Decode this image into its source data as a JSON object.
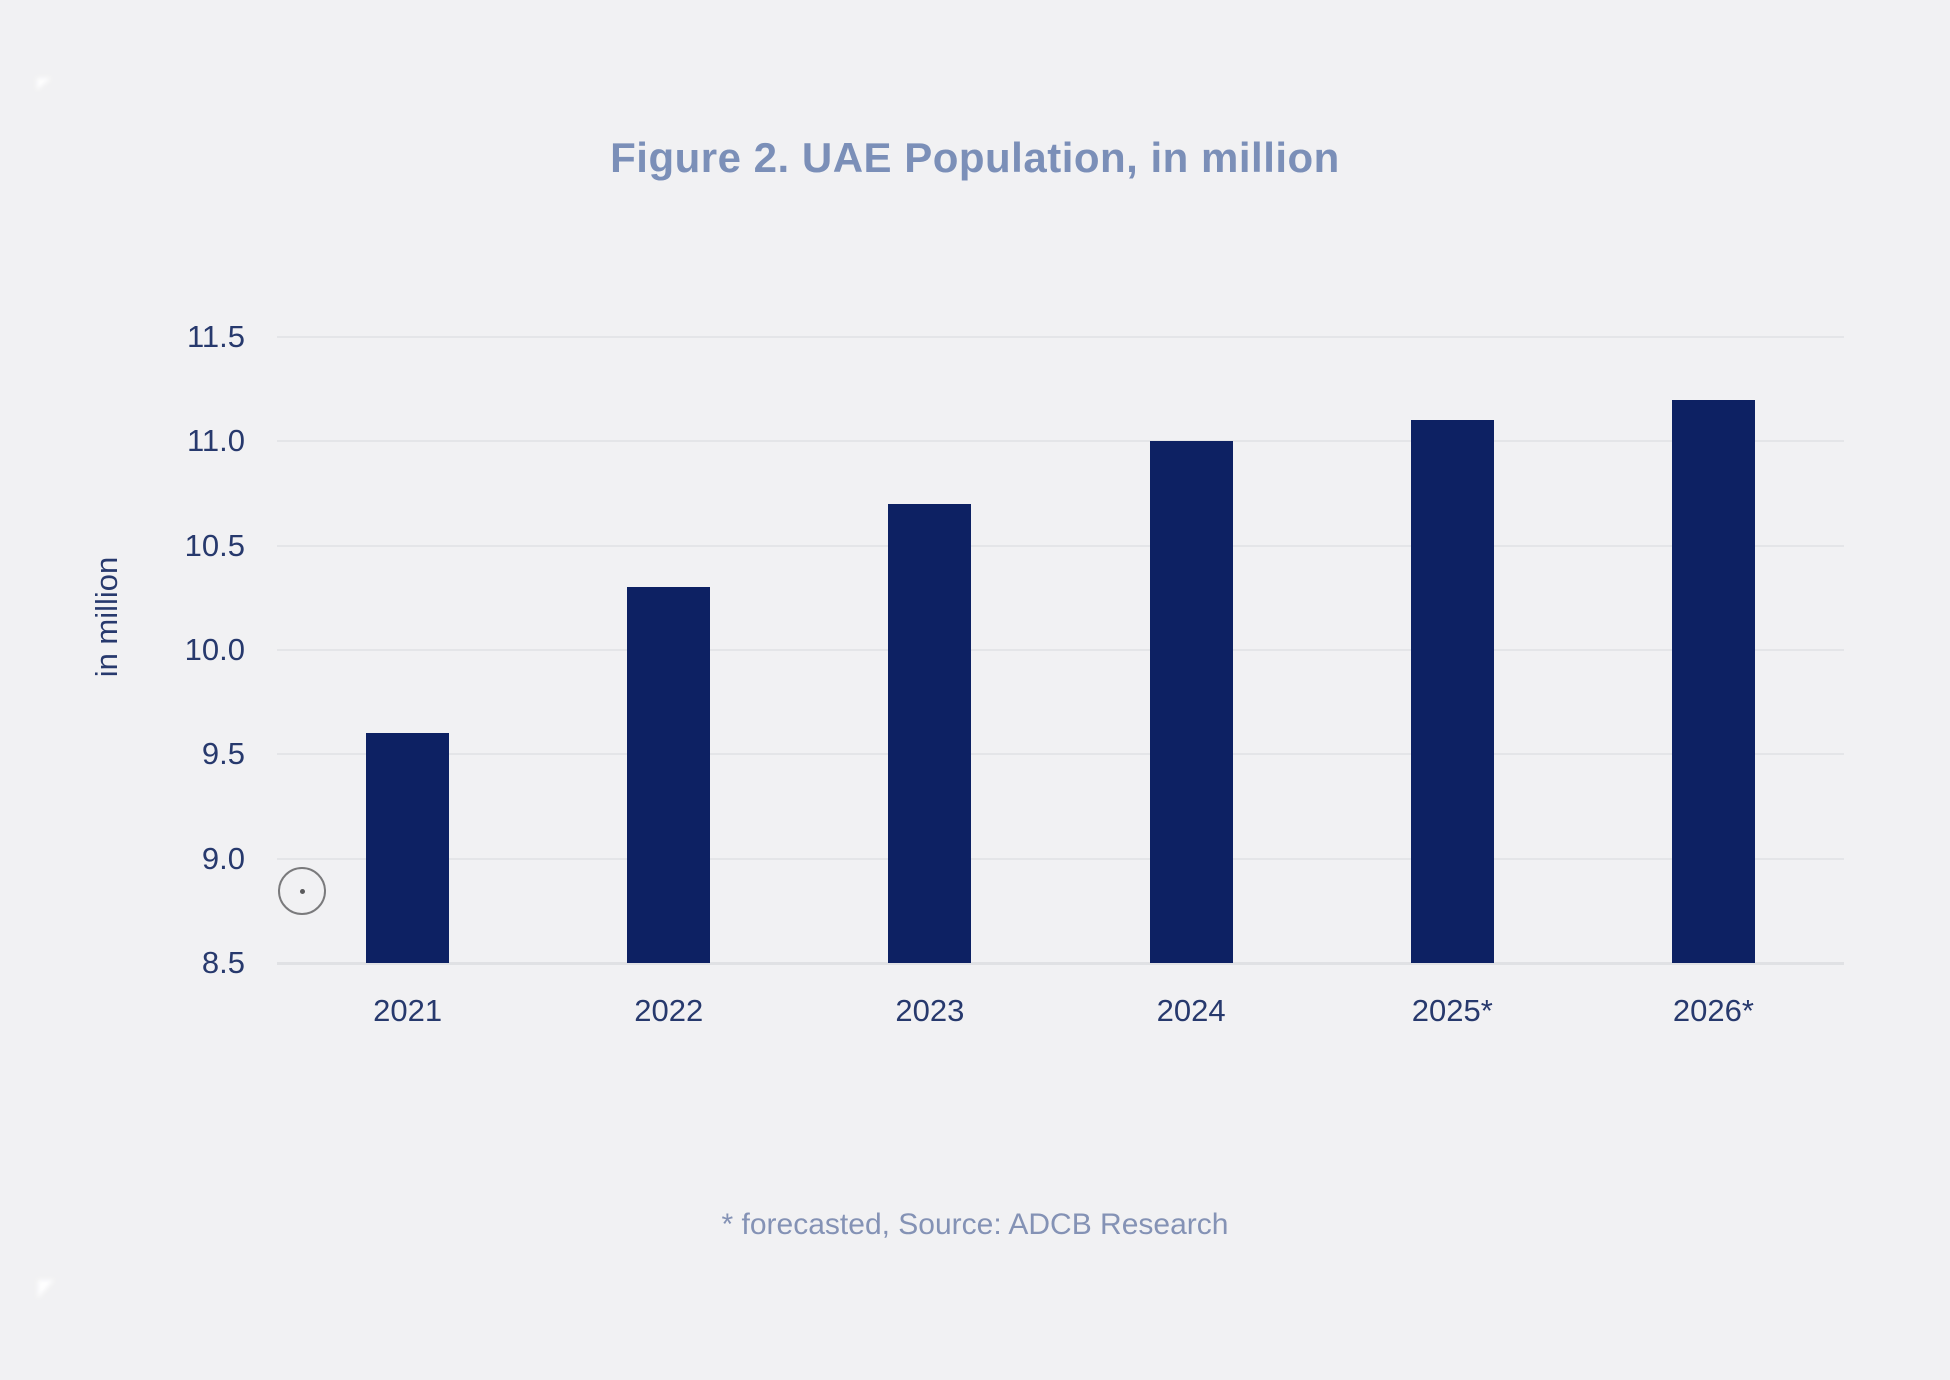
{
  "page": {
    "background_color": "#f1f1f3"
  },
  "chart_data": {
    "type": "bar",
    "title": "Figure 2. UAE Population, in million",
    "categories": [
      "2021",
      "2022",
      "2023",
      "2024",
      "2025*",
      "2026*"
    ],
    "values": [
      9.6,
      10.3,
      10.7,
      11.0,
      11.1,
      11.2
    ],
    "xlabel": "",
    "ylabel": "in million",
    "ylim": [
      8.5,
      11.5
    ],
    "yticks": [
      8.5,
      9.0,
      9.5,
      10.0,
      10.5,
      11.0,
      11.5
    ],
    "grid": "horizontal",
    "legend": "none",
    "bar_color": "#0d2163",
    "axis_tick_color": "#27396d",
    "title_color": "#7b8fb8",
    "gridline_color": "#e4e5e8"
  },
  "footer": {
    "note": "* forecasted, Source: ADCB Research"
  }
}
